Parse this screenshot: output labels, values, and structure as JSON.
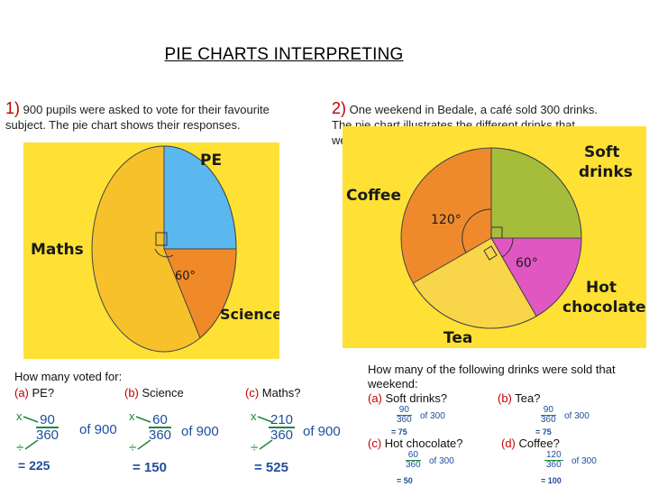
{
  "title": "PIE CHARTS INTERPRETING",
  "q1": {
    "number": "1)",
    "line1": "900 pupils were asked to vote for their favourite",
    "line2": "subject. The pie chart shows their responses.",
    "labels": {
      "pe": "PE",
      "maths": "Maths",
      "science": "Science",
      "angle": "60°"
    },
    "prompt": "How many voted for:",
    "parts": [
      {
        "letter": "(a)",
        "text": "PE?",
        "num": "90",
        "den": "360",
        "of": "of 900",
        "x": "x",
        "div": "÷",
        "eq": "= 225"
      },
      {
        "letter": "(b)",
        "text": "Science",
        "num": "60",
        "den": "360",
        "of": "of 900",
        "x": "x",
        "div": "÷",
        "eq": "= 150"
      },
      {
        "letter": "(c)",
        "text": "Maths?",
        "num": "210",
        "den": "360",
        "of": "of 900",
        "x": "x",
        "div": "÷",
        "eq": "= 525"
      }
    ]
  },
  "q2": {
    "number": "2)",
    "line1": "One weekend in Bedale, a café sold 300 drinks.",
    "line2": "The pie chart illustrates the different drinks that",
    "line3": "were sold.",
    "labels": {
      "coffee": "Coffee",
      "soft1": "Soft",
      "soft2": "drinks",
      "hot1": "Hot",
      "hot2": "chocolate",
      "tea": "Tea",
      "angle120": "120°",
      "angle60": "60°"
    },
    "prompt1": "How many of the following drinks were sold that",
    "prompt2": "weekend:",
    "parts": [
      {
        "letter": "(a)",
        "text": "Soft drinks?",
        "num": "90",
        "den": "360",
        "of": "of 300",
        "eq": "= 75"
      },
      {
        "letter": "(b)",
        "text": "Tea?",
        "num": "90",
        "den": "360",
        "of": "of 300",
        "eq": "= 75"
      },
      {
        "letter": "(c)",
        "text": "Hot chocolate?",
        "num": "60",
        "den": "360",
        "of": "of 300",
        "eq": "= 50"
      },
      {
        "letter": "(d)",
        "text": "Coffee?",
        "num": "120",
        "den": "360",
        "of": "of 300",
        "eq": "= 100"
      }
    ]
  },
  "colors": {
    "panel": "#ffe135",
    "pe": "#5bb8ef",
    "science": "#f08a28",
    "maths": "#f6c12a",
    "coffee": "#ef8a2c",
    "soft": "#a6bd3c",
    "hot": "#e157c2",
    "tea": "#f9d54a",
    "number": "#c00000"
  }
}
